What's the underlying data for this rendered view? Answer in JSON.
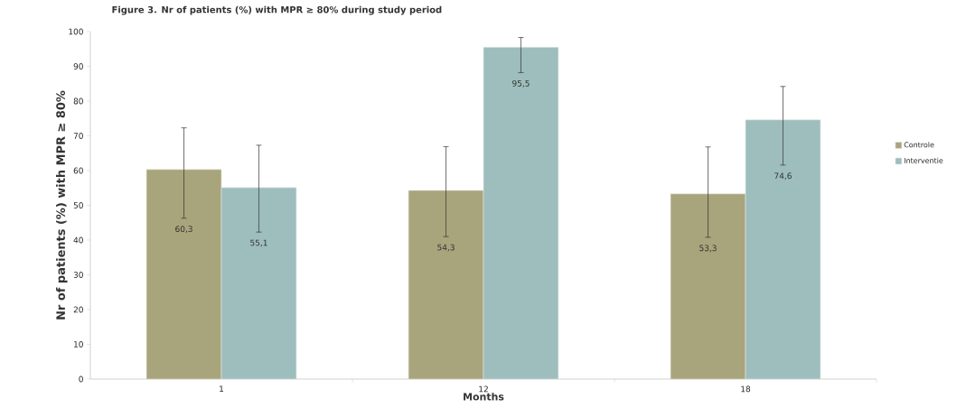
{
  "chart_data": {
    "type": "bar",
    "title": "Figure 3. Nr of patients (%) with MPR ≥ 80% during study period",
    "xlabel": "Months",
    "ylabel": "Nr of patients (%) with  MPR ≥ 80%",
    "categories": [
      "1",
      "12",
      "18"
    ],
    "series": [
      {
        "name": "Controle",
        "color": "#a8a47c",
        "values": [
          60.3,
          54.3,
          53.3
        ],
        "errors": [
          [
            46.3,
            72.3
          ],
          [
            41.0,
            66.9
          ],
          [
            40.8,
            66.8
          ]
        ],
        "value_labels": [
          "60,3",
          "54,3",
          "53,3"
        ]
      },
      {
        "name": "Interventie",
        "color": "#9ebdbd",
        "values": [
          55.1,
          95.5,
          74.6
        ],
        "errors": [
          [
            42.3,
            67.3
          ],
          [
            88.2,
            98.3
          ],
          [
            61.6,
            84.2
          ]
        ],
        "value_labels": [
          "55,1",
          "95,5",
          "74,6"
        ]
      }
    ],
    "ylim": [
      0,
      100
    ],
    "yticks": [
      0,
      10,
      20,
      30,
      40,
      50,
      60,
      70,
      80,
      90,
      100
    ],
    "legend": "right",
    "grid": false
  }
}
